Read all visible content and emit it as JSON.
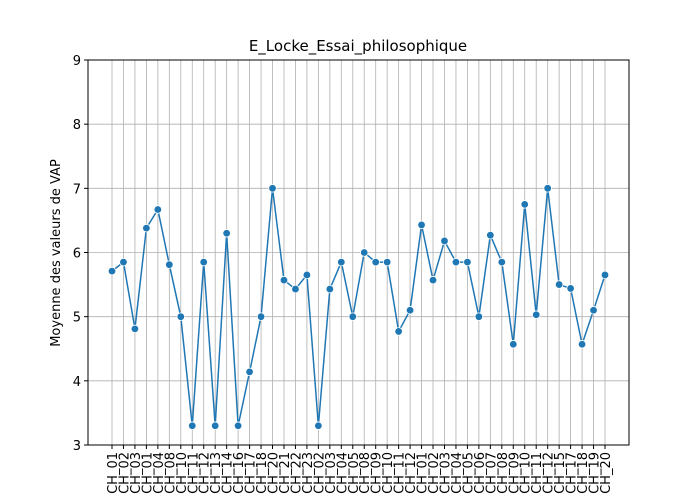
{
  "chart_data": {
    "type": "line",
    "title": "E_Locke_Essai_philosophique",
    "ylabel": "Moyenne des valeurs de VAP",
    "categories": [
      "CH_01",
      "CH_02",
      "CH_03",
      "CH_01",
      "CH_04",
      "CH_08",
      "CH_10",
      "CH_11",
      "CH_12",
      "CH_13",
      "CH_14",
      "CH_16",
      "CH_17",
      "CH_18",
      "CH_20",
      "CH_21",
      "CH_22",
      "CH_23",
      "CH_02",
      "CH_03",
      "CH_04",
      "CH_05",
      "CH_08",
      "CH_09",
      "CH_10",
      "CH_11",
      "CH_12",
      "CH_01",
      "CH_02",
      "CH_03",
      "CH_04",
      "CH_05",
      "CH_06",
      "CH_07",
      "CH_08",
      "CH_09",
      "CH_10",
      "CH_11",
      "CH_12",
      "CH_15",
      "CH_17",
      "CH_18",
      "CH_19",
      "CH_20"
    ],
    "series": [
      {
        "name": "VAP",
        "color": "#1f77b4",
        "values": [
          5.71,
          5.85,
          4.81,
          6.38,
          6.67,
          5.81,
          5.0,
          3.3,
          5.85,
          3.3,
          6.3,
          3.3,
          4.14,
          5.0,
          7.0,
          5.57,
          5.43,
          5.65,
          3.3,
          5.43,
          5.85,
          5.0,
          6.0,
          5.85,
          5.85,
          4.77,
          5.1,
          6.43,
          5.57,
          6.18,
          5.85,
          5.85,
          5.0,
          6.27,
          5.85,
          4.57,
          6.75,
          5.03,
          7.0,
          5.5,
          5.44,
          4.57,
          5.1,
          5.65
        ]
      }
    ],
    "ylim": [
      3,
      9
    ],
    "yticks": [
      3,
      4,
      5,
      6,
      7,
      8,
      9
    ],
    "grid": true
  }
}
